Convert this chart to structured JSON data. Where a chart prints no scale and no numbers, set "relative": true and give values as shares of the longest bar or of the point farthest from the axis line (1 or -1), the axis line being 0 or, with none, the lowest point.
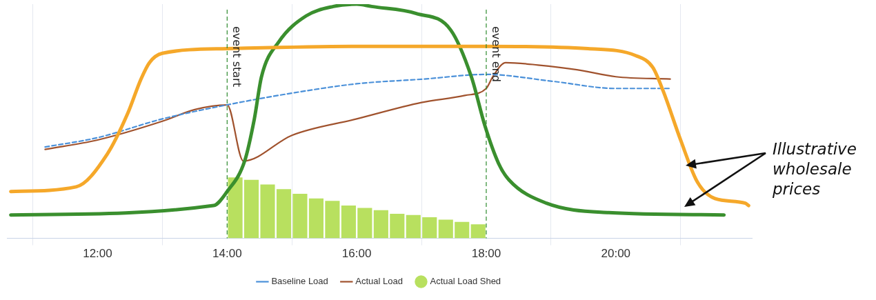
{
  "chart_data": {
    "type": "line",
    "relative": true,
    "xlim": [
      10.6,
      22.1
    ],
    "xticks": [
      {
        "value": 12,
        "label": "12:00"
      },
      {
        "value": 14,
        "label": "14:00"
      },
      {
        "value": 16,
        "label": "16:00"
      },
      {
        "value": 18,
        "label": "18:00"
      },
      {
        "value": 20,
        "label": "20:00"
      }
    ],
    "grid": "x",
    "legend": "bottom",
    "marker": "none",
    "series": [
      {
        "name": "Baseline Load",
        "line_style": "dashed",
        "color": "#4a90d9",
        "x": [
          11.19,
          12,
          13,
          14,
          15,
          16,
          17.03,
          18,
          19.04,
          20,
          20.84
        ],
        "values": [
          0.39,
          0.43,
          0.51,
          0.57,
          0.62,
          0.66,
          0.68,
          0.7,
          0.67,
          0.64,
          0.64
        ]
      },
      {
        "name": "Actual Load",
        "line_style": "solid",
        "color": "#a0522d",
        "x": [
          11.19,
          12,
          13,
          13.5,
          14,
          14.25,
          15,
          16,
          17,
          17.67,
          18,
          18.1,
          18.3,
          18.8,
          19.4,
          20,
          20.84
        ],
        "values": [
          0.38,
          0.42,
          0.5,
          0.55,
          0.57,
          0.33,
          0.44,
          0.51,
          0.58,
          0.61,
          0.64,
          0.69,
          0.75,
          0.74,
          0.72,
          0.69,
          0.68
        ]
      },
      {
        "name": "Actual Load Shed",
        "type": "bar",
        "color": "#b8e05f",
        "x": [
          14.125,
          14.375,
          14.625,
          14.875,
          15.125,
          15.375,
          15.625,
          15.875,
          16.125,
          16.375,
          16.625,
          16.875,
          17.125,
          17.375,
          17.625,
          17.875
        ],
        "values": [
          0.26,
          0.25,
          0.23,
          0.21,
          0.19,
          0.17,
          0.16,
          0.14,
          0.13,
          0.12,
          0.105,
          0.1,
          0.09,
          0.08,
          0.07,
          0.06
        ]
      },
      {
        "line_style": "solid",
        "color": "#f5a82a",
        "x": [
          10.66,
          11.67,
          12.15,
          12.46,
          12.67,
          12.8,
          13,
          14,
          16,
          18,
          19.57,
          20.31,
          20.57,
          20.73,
          21,
          21.26,
          21.53,
          22,
          22.05
        ],
        "values": [
          0.2,
          0.22,
          0.36,
          0.53,
          0.68,
          0.75,
          0.79,
          0.81,
          0.82,
          0.82,
          0.81,
          0.78,
          0.73,
          0.63,
          0.42,
          0.24,
          0.17,
          0.15,
          0.14
        ]
      },
      {
        "line_style": "solid",
        "color": "#3a8f2e",
        "x": [
          10.66,
          13.79,
          14,
          14.27,
          14.42,
          14.53,
          14.8,
          15.22,
          15.64,
          16,
          16.23,
          16.92,
          17.45,
          17.77,
          17.98,
          18.19,
          18.35,
          18.93,
          19.89,
          21.67
        ],
        "values": [
          0.1,
          0.14,
          0.2,
          0.33,
          0.51,
          0.69,
          0.84,
          0.95,
          0.99,
          1,
          0.99,
          0.96,
          0.89,
          0.69,
          0.48,
          0.32,
          0.25,
          0.15,
          0.11,
          0.1
        ]
      }
    ],
    "ref_lines": [
      {
        "axis": "x",
        "value": 14,
        "label": "event start",
        "color": "#2e8b2e",
        "line_style": "dashed"
      },
      {
        "axis": "x",
        "value": 18,
        "label": "event end",
        "color": "#2e8b2e",
        "line_style": "dashed"
      }
    ],
    "annotations": [
      "Illustrative wholesale prices"
    ]
  }
}
